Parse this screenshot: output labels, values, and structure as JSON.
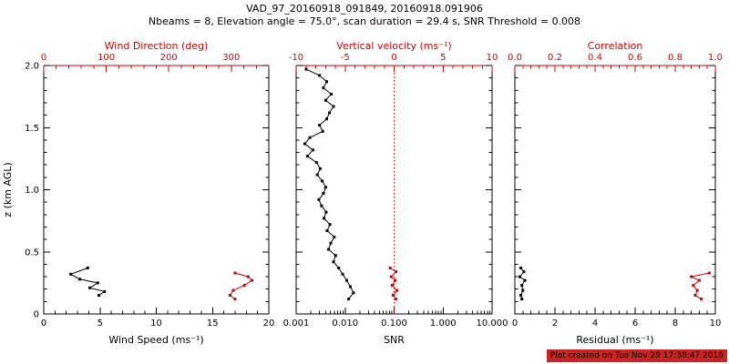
{
  "title": {
    "line1": "VAD_97_20160918_091849, 20160918.091906",
    "line2": "Nbeams = 8, Elevation angle = 75.0°, scan duration = 29.4 s, SNR Threshold = 0.008"
  },
  "stamp": {
    "text": "Plot created on Tue Nov 29 17:38:47 2016",
    "bg": "#cc2222",
    "fg": "#000000"
  },
  "colors": {
    "axis": "#000000",
    "secondary": "#cc0000"
  },
  "chart_data": {
    "type": "line",
    "title": "VAD_97_20160918_091849, 20160918.091906",
    "subtitle": "Nbeams = 8, Elevation angle = 75.0°, scan duration = 29.4 s, SNR Threshold = 0.008",
    "panels": [
      {
        "name": "wind-panel",
        "y_axis": {
          "label": "z (km AGL)",
          "range": [
            0,
            2
          ],
          "ticks": [
            0,
            0.5,
            1,
            1.5,
            2
          ],
          "tick_labels": [
            "0",
            "0.5",
            "1.0",
            "1.5",
            "2.0"
          ],
          "show_labels": true
        },
        "bottom_axis": {
          "label": "Wind Speed (ms⁻¹)",
          "range": [
            0,
            20
          ],
          "ticks": [
            0,
            5,
            10,
            15,
            20
          ],
          "tick_labels": [
            "0",
            "5",
            "10",
            "15",
            "20"
          ],
          "log": false
        },
        "top_axis": {
          "label": "Wind Direction (deg)",
          "range": [
            0,
            360
          ],
          "ticks": [
            0,
            100,
            200,
            300
          ],
          "tick_labels": [
            "0",
            "100",
            "200",
            "300"
          ]
        },
        "series": [
          {
            "name": "wind-speed",
            "axis": "bottom",
            "color": "#000000",
            "points": [
              [
                3.9,
                0.37
              ],
              [
                2.4,
                0.32
              ],
              [
                3.2,
                0.28
              ],
              [
                4.8,
                0.25
              ],
              [
                4.1,
                0.21
              ],
              [
                5.4,
                0.18
              ],
              [
                4.9,
                0.15
              ]
            ]
          },
          {
            "name": "wind-direction",
            "axis": "top",
            "color": "#cc0000",
            "points": [
              [
                306,
                0.33
              ],
              [
                327,
                0.3
              ],
              [
                333,
                0.27
              ],
              [
                321,
                0.23
              ],
              [
                303,
                0.19
              ],
              [
                298,
                0.15
              ],
              [
                306,
                0.12
              ]
            ]
          }
        ]
      },
      {
        "name": "snr-panel",
        "y_axis": {
          "label": "",
          "range": [
            0,
            2
          ],
          "ticks": [
            0,
            0.5,
            1,
            1.5,
            2
          ],
          "tick_labels": [
            "0",
            "0.5",
            "1.0",
            "1.5",
            "2.0"
          ],
          "show_labels": false
        },
        "bottom_axis": {
          "label": "SNR",
          "range": [
            0.001,
            10
          ],
          "ticks": [
            0.001,
            0.01,
            0.1,
            1,
            10
          ],
          "tick_labels": [
            "0.001",
            "0.010",
            "0.100",
            "1.000",
            "10.000"
          ],
          "log": true
        },
        "top_axis": {
          "label": "Vertical velocity (ms⁻¹)",
          "range": [
            -10,
            10
          ],
          "ticks": [
            -10,
            -5,
            0,
            5,
            10
          ],
          "tick_labels": [
            "-10",
            "-5",
            "0",
            "5",
            "10"
          ]
        },
        "refline_top": 0,
        "series": [
          {
            "name": "snr",
            "axis": "bottom",
            "color": "#000000",
            "points": [
              [
                0.0016,
                1.97
              ],
              [
                0.003,
                1.92
              ],
              [
                0.0042,
                1.87
              ],
              [
                0.0036,
                1.82
              ],
              [
                0.0052,
                1.77
              ],
              [
                0.004,
                1.72
              ],
              [
                0.0058,
                1.67
              ],
              [
                0.0048,
                1.62
              ],
              [
                0.0042,
                1.57
              ],
              [
                0.003,
                1.52
              ],
              [
                0.0035,
                1.47
              ],
              [
                0.0019,
                1.42
              ],
              [
                0.0015,
                1.37
              ],
              [
                0.0022,
                1.32
              ],
              [
                0.0017,
                1.27
              ],
              [
                0.0026,
                1.22
              ],
              [
                0.0031,
                1.17
              ],
              [
                0.0027,
                1.12
              ],
              [
                0.0034,
                1.07
              ],
              [
                0.004,
                1.02
              ],
              [
                0.0036,
                0.97
              ],
              [
                0.0029,
                0.92
              ],
              [
                0.0033,
                0.87
              ],
              [
                0.0041,
                0.82
              ],
              [
                0.0037,
                0.77
              ],
              [
                0.0049,
                0.72
              ],
              [
                0.0043,
                0.67
              ],
              [
                0.006,
                0.62
              ],
              [
                0.0051,
                0.57
              ],
              [
                0.0046,
                0.52
              ],
              [
                0.0064,
                0.47
              ],
              [
                0.0058,
                0.42
              ],
              [
                0.0074,
                0.37
              ],
              [
                0.0089,
                0.32
              ],
              [
                0.0108,
                0.27
              ],
              [
                0.0128,
                0.22
              ],
              [
                0.0148,
                0.17
              ],
              [
                0.0118,
                0.12
              ]
            ]
          },
          {
            "name": "vertical-velocity",
            "axis": "top",
            "color": "#cc0000",
            "points": [
              [
                -0.4,
                0.37
              ],
              [
                0.2,
                0.34
              ],
              [
                -0.3,
                0.3
              ],
              [
                0.1,
                0.27
              ],
              [
                -0.2,
                0.23
              ],
              [
                0.3,
                0.19
              ],
              [
                -0.1,
                0.15
              ],
              [
                0.2,
                0.12
              ]
            ]
          }
        ]
      },
      {
        "name": "residual-panel",
        "y_axis": {
          "label": "",
          "range": [
            0,
            2
          ],
          "ticks": [
            0,
            0.5,
            1,
            1.5,
            2
          ],
          "tick_labels": [
            "0",
            "0.5",
            "1.0",
            "1.5",
            "2.0"
          ],
          "show_labels": false
        },
        "bottom_axis": {
          "label": "Residual (ms⁻¹)",
          "range": [
            0,
            10
          ],
          "ticks": [
            0,
            2,
            4,
            6,
            8,
            10
          ],
          "tick_labels": [
            "0",
            "2",
            "4",
            "6",
            "8",
            "10"
          ],
          "log": false
        },
        "top_axis": {
          "label": "Correlation",
          "range": [
            0,
            1
          ],
          "ticks": [
            0,
            0.2,
            0.4,
            0.6,
            0.8,
            1
          ],
          "tick_labels": [
            "0.0",
            "0.2",
            "0.4",
            "0.6",
            "0.8",
            "1.0"
          ]
        },
        "series": [
          {
            "name": "residual",
            "axis": "bottom",
            "color": "#000000",
            "points": [
              [
                0.3,
                0.37
              ],
              [
                0.45,
                0.34
              ],
              [
                0.25,
                0.3
              ],
              [
                0.5,
                0.27
              ],
              [
                0.35,
                0.23
              ],
              [
                0.4,
                0.19
              ],
              [
                0.3,
                0.15
              ],
              [
                0.35,
                0.12
              ]
            ]
          },
          {
            "name": "correlation",
            "axis": "top",
            "color": "#cc0000",
            "points": [
              [
                0.97,
                0.33
              ],
              [
                0.88,
                0.3
              ],
              [
                0.92,
                0.27
              ],
              [
                0.89,
                0.23
              ],
              [
                0.91,
                0.19
              ],
              [
                0.9,
                0.15
              ],
              [
                0.93,
                0.12
              ]
            ]
          }
        ]
      }
    ]
  }
}
